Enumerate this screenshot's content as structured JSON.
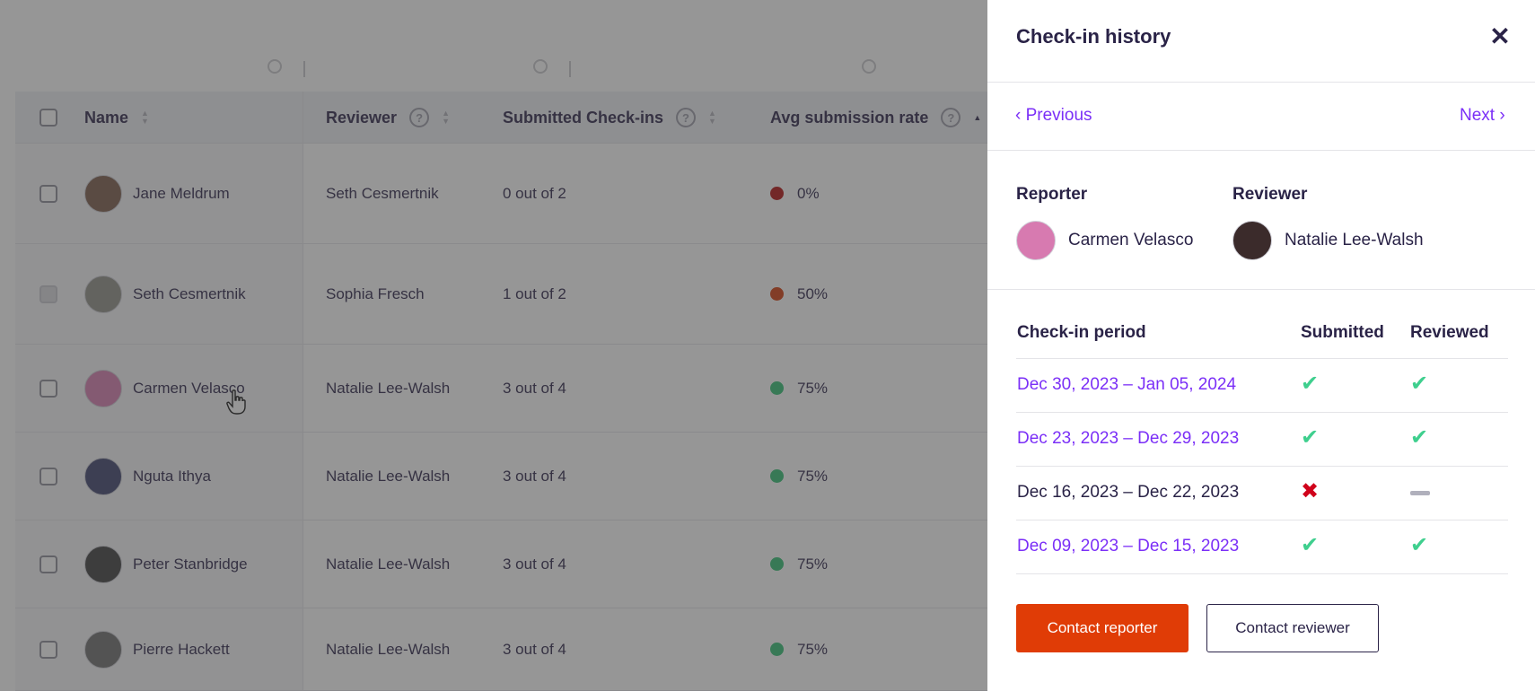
{
  "table": {
    "columns": {
      "name": "Name",
      "reviewer": "Reviewer",
      "submitted": "Submitted Check-ins",
      "rate": "Avg submission rate"
    },
    "rows": [
      {
        "name": "Jane Meldrum",
        "reviewer": "Seth Cesmertnik",
        "submitted": "0 out of 2",
        "rate": "0%",
        "rate_color": "#b10d0d",
        "avatar_color": "#7a5a48"
      },
      {
        "name": "Seth Cesmertnik",
        "reviewer": "Sophia Fresch",
        "submitted": "1 out of 2",
        "rate": "50%",
        "rate_color": "#d23b0a",
        "avatar_color": "#8f8f86"
      },
      {
        "name": "Carmen Velasco",
        "reviewer": "Natalie Lee-Walsh",
        "submitted": "3 out of 4",
        "rate": "75%",
        "rate_color": "#2fbf71",
        "avatar_color": "#d77ab0"
      },
      {
        "name": "Nguta Ithya",
        "reviewer": "Natalie Lee-Walsh",
        "submitted": "3 out of 4",
        "rate": "75%",
        "rate_color": "#2fbf71",
        "avatar_color": "#3a3f6a"
      },
      {
        "name": "Peter Stanbridge",
        "reviewer": "Natalie Lee-Walsh",
        "submitted": "3 out of 4",
        "rate": "75%",
        "rate_color": "#2fbf71",
        "avatar_color": "#3a3a3a"
      },
      {
        "name": "Pierre Hackett",
        "reviewer": "Natalie Lee-Walsh",
        "submitted": "3 out of 4",
        "rate": "75%",
        "rate_color": "#2fbf71",
        "avatar_color": "#6b6b6b"
      }
    ]
  },
  "panel": {
    "title": "Check-in history",
    "previous": "‹ Previous",
    "next": "Next ›",
    "reporter_label": "Reporter",
    "reviewer_label": "Reviewer",
    "reporter_name": "Carmen Velasco",
    "reviewer_name": "Natalie Lee-Walsh",
    "reporter_avatar_color": "#d77ab0",
    "reviewer_avatar_color": "#3b2b2b",
    "history_headers": {
      "period": "Check-in period",
      "submitted": "Submitted",
      "reviewed": "Reviewed"
    },
    "history": [
      {
        "period": "Dec 30, 2023 – Jan 05, 2024",
        "link": true,
        "submitted": "check",
        "reviewed": "check"
      },
      {
        "period": "Dec 23, 2023 – Dec 29, 2023",
        "link": true,
        "submitted": "check",
        "reviewed": "check"
      },
      {
        "period": "Dec 16, 2023 – Dec 22, 2023",
        "link": false,
        "submitted": "cross",
        "reviewed": "dash"
      },
      {
        "period": "Dec 09, 2023 – Dec 15, 2023",
        "link": true,
        "submitted": "check",
        "reviewed": "check"
      }
    ],
    "contact_reporter": "Contact reporter",
    "contact_reviewer": "Contact reviewer"
  },
  "colors": {
    "accent_link": "#7b2ff7",
    "primary_button": "#e03c06",
    "check": "#3fcf8e",
    "cross": "#d0021b"
  }
}
